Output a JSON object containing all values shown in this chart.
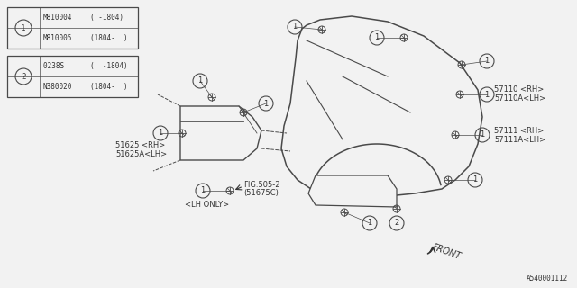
{
  "bg_color": "#f0f0f0",
  "line_color": "#555555",
  "diagram_id": "A540001112",
  "table1": {
    "circle_num": "1",
    "rows": [
      {
        "part": "M810004",
        "range": "( -1804)"
      },
      {
        "part": "M810005",
        "range": "(1804-  )"
      }
    ]
  },
  "table2": {
    "circle_num": "2",
    "rows": [
      {
        "part": "0238S  ",
        "range": "(  -1804)"
      },
      {
        "part": "N380020",
        "range": "(1804-  )"
      }
    ]
  }
}
